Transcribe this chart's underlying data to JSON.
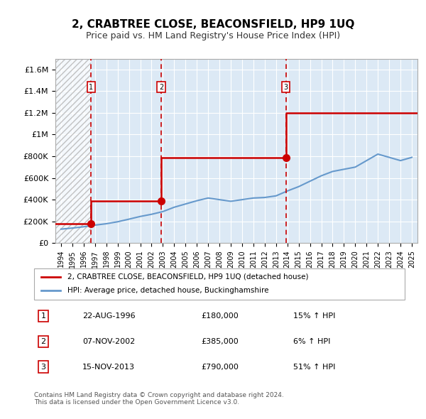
{
  "title": "2, CRABTREE CLOSE, BEACONSFIELD, HP9 1UQ",
  "subtitle": "Price paid vs. HM Land Registry's House Price Index (HPI)",
  "property_color": "#cc0000",
  "hpi_color": "#6699cc",
  "hatch_color": "#cccccc",
  "background_color": "#dce9f5",
  "ylim": [
    0,
    1700000
  ],
  "yticks": [
    0,
    200000,
    400000,
    600000,
    800000,
    1000000,
    1200000,
    1400000,
    1600000
  ],
  "ytick_labels": [
    "£0",
    "£200K",
    "£400K",
    "£600K",
    "£800K",
    "£1M",
    "£1.2M",
    "£1.4M",
    "£1.6M"
  ],
  "xlim_start": 1993.5,
  "xlim_end": 2025.5,
  "xticks": [
    1994,
    1995,
    1996,
    1997,
    1998,
    1999,
    2000,
    2001,
    2002,
    2003,
    2004,
    2005,
    2006,
    2007,
    2008,
    2009,
    2010,
    2011,
    2012,
    2013,
    2014,
    2015,
    2016,
    2017,
    2018,
    2019,
    2020,
    2021,
    2022,
    2023,
    2024,
    2025
  ],
  "sales": [
    {
      "date": 1996.64,
      "price": 180000,
      "label": "1"
    },
    {
      "date": 2002.85,
      "price": 385000,
      "label": "2"
    },
    {
      "date": 2013.88,
      "price": 790000,
      "label": "3"
    }
  ],
  "sale_vlines": [
    1996.64,
    2002.85,
    2013.88
  ],
  "property_line_x": [
    1993.5,
    1996.64,
    1996.64,
    2002.85,
    2002.85,
    2013.88,
    2013.88,
    2025.5
  ],
  "property_line_y": [
    180000,
    180000,
    385000,
    385000,
    790000,
    790000,
    1200000,
    1200000
  ],
  "hpi_line_x": [
    1994,
    1995,
    1996,
    1997,
    1998,
    1999,
    2000,
    2001,
    2002,
    2003,
    2004,
    2005,
    2006,
    2007,
    2008,
    2009,
    2010,
    2011,
    2012,
    2013,
    2014,
    2015,
    2016,
    2017,
    2018,
    2019,
    2020,
    2021,
    2022,
    2023,
    2024,
    2025
  ],
  "hpi_line_y": [
    128000,
    138000,
    150000,
    165000,
    178000,
    196000,
    220000,
    245000,
    265000,
    290000,
    330000,
    360000,
    390000,
    415000,
    400000,
    385000,
    400000,
    415000,
    420000,
    435000,
    480000,
    520000,
    570000,
    620000,
    660000,
    680000,
    700000,
    760000,
    820000,
    790000,
    760000,
    790000
  ],
  "table_rows": [
    {
      "num": "1",
      "date": "22-AUG-1996",
      "price": "£180,000",
      "change": "15% ↑ HPI"
    },
    {
      "num": "2",
      "date": "07-NOV-2002",
      "price": "£385,000",
      "change": "6% ↑ HPI"
    },
    {
      "num": "3",
      "date": "15-NOV-2013",
      "price": "£790,000",
      "change": "51% ↑ HPI"
    }
  ],
  "legend_property": "2, CRABTREE CLOSE, BEACONSFIELD, HP9 1UQ (detached house)",
  "legend_hpi": "HPI: Average price, detached house, Buckinghamshire",
  "footer": "Contains HM Land Registry data © Crown copyright and database right 2024.\nThis data is licensed under the Open Government Licence v3.0."
}
